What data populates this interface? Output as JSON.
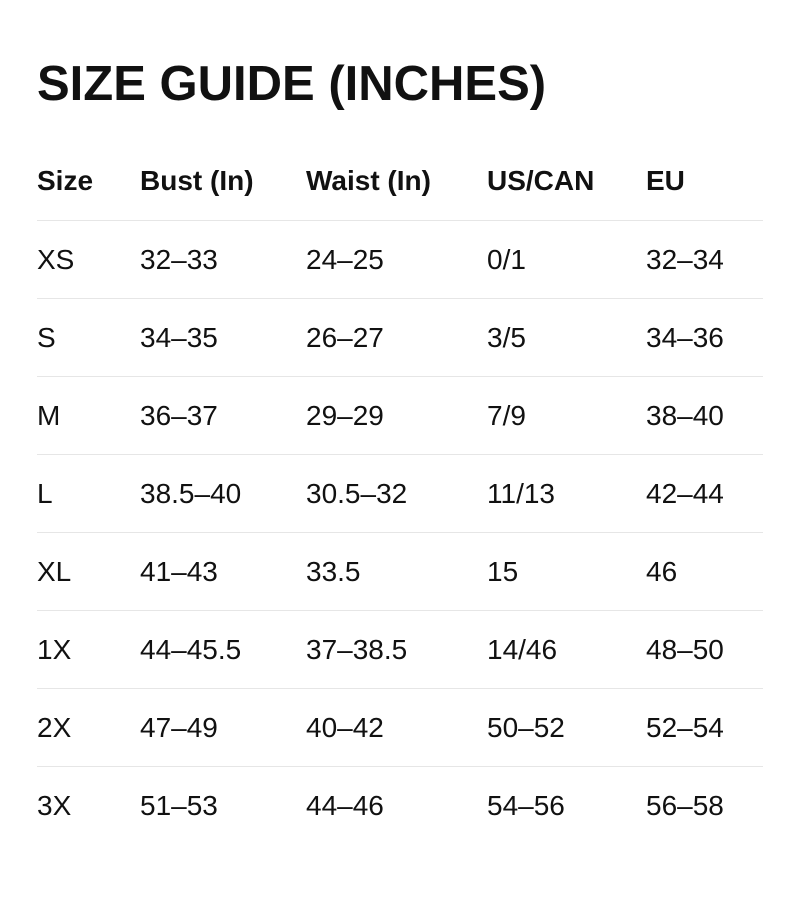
{
  "title": "SIZE GUIDE (INCHES)",
  "headers": [
    "Size",
    "Bust (In)",
    "Waist (In)",
    "US/CAN",
    "EU"
  ],
  "rows": [
    [
      "XS",
      "32–33",
      "24–25",
      "0/1",
      "32–34"
    ],
    [
      "S",
      "34–35",
      "26–27",
      "3/5",
      "34–36"
    ],
    [
      "M",
      "36–37",
      "29–29",
      "7/9",
      "38–40"
    ],
    [
      "L",
      "38.5–40",
      "30.5–32",
      "11/13",
      "42–44"
    ],
    [
      "XL",
      "41–43",
      "33.5",
      "15",
      "46"
    ],
    [
      "1X",
      "44–45.5",
      "37–38.5",
      "14/46",
      "48–50"
    ],
    [
      "2X",
      "47–49",
      "40–42",
      "50–52",
      "52–54"
    ],
    [
      "3X",
      "51–53",
      "44–46",
      "54–56",
      "56–58"
    ]
  ]
}
